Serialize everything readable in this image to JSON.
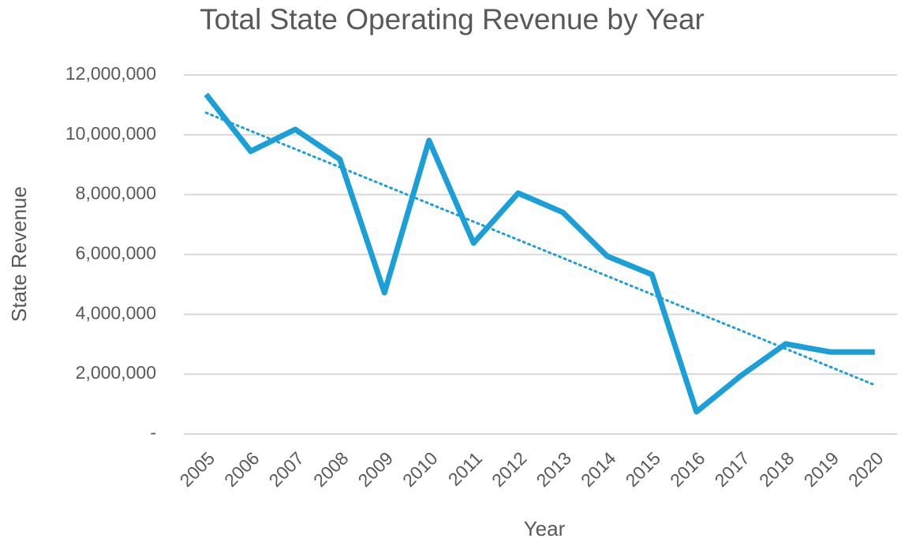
{
  "chart_data": {
    "type": "line",
    "title": "Total State Operating Revenue by Year",
    "x_label": "Year",
    "y_label": "State Revenue",
    "categories": [
      "2005",
      "2006",
      "2007",
      "2008",
      "2009",
      "2010",
      "2011",
      "2012",
      "2013",
      "2014",
      "2015",
      "2016",
      "2017",
      "2018",
      "2019",
      "2020"
    ],
    "series": [
      {
        "name": "State Revenue",
        "color": "#1a9fd9",
        "values": [
          11350000,
          9450000,
          10180000,
          9180000,
          4720000,
          9810000,
          6380000,
          8050000,
          7410000,
          5940000,
          5330000,
          740000,
          1950000,
          3010000,
          2740000,
          2740000
        ]
      }
    ],
    "trendline": "linear",
    "ylim": [
      0,
      12000000
    ],
    "yticks": [
      {
        "value": 0,
        "label": "-"
      },
      {
        "value": 2000000,
        "label": "2,000,000"
      },
      {
        "value": 4000000,
        "label": "4,000,000"
      },
      {
        "value": 6000000,
        "label": "6,000,000"
      },
      {
        "value": 8000000,
        "label": "8,000,000"
      },
      {
        "value": 10000000,
        "label": "10,000,000"
      },
      {
        "value": 12000000,
        "label": "12,000,000"
      }
    ],
    "grid": true
  }
}
